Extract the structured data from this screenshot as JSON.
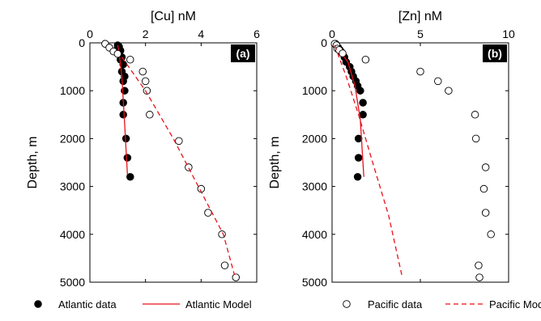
{
  "chart_data": [
    {
      "type": "scatter",
      "panel_label": "(a)",
      "xlabel": "[Cu] nM",
      "ylabel": "Depth, m",
      "xlim": [
        0,
        6
      ],
      "ylim": [
        0,
        5000
      ],
      "y_reversed": true,
      "x_axis_position": "top",
      "xticks": [
        0,
        2,
        4,
        6
      ],
      "yticks": [
        0,
        1000,
        2000,
        3000,
        4000,
        5000
      ],
      "series": [
        {
          "name": "Atlantic data",
          "style": "filled-circle",
          "points": [
            [
              1.0,
              50
            ],
            [
              1.05,
              80
            ],
            [
              1.0,
              120
            ],
            [
              1.1,
              160
            ],
            [
              1.05,
              200
            ],
            [
              1.15,
              300
            ],
            [
              1.1,
              350
            ],
            [
              1.2,
              450
            ],
            [
              1.15,
              600
            ],
            [
              1.25,
              700
            ],
            [
              1.2,
              800
            ],
            [
              1.25,
              1000
            ],
            [
              1.2,
              1250
            ],
            [
              1.2,
              1500
            ],
            [
              1.3,
              2000
            ],
            [
              1.35,
              2400
            ],
            [
              1.45,
              2800
            ]
          ]
        },
        {
          "name": "Atlantic Model",
          "style": "solid-line",
          "points": [
            [
              1.0,
              50
            ],
            [
              1.05,
              200
            ],
            [
              1.15,
              700
            ],
            [
              1.25,
              1700
            ],
            [
              1.35,
              2750
            ]
          ]
        },
        {
          "name": "Pacific data",
          "style": "open-circle",
          "points": [
            [
              0.55,
              20
            ],
            [
              0.7,
              100
            ],
            [
              0.85,
              180
            ],
            [
              1.0,
              230
            ],
            [
              1.45,
              350
            ],
            [
              1.9,
              600
            ],
            [
              2.0,
              800
            ],
            [
              2.05,
              1000
            ],
            [
              2.15,
              1500
            ],
            [
              3.2,
              2050
            ],
            [
              3.55,
              2600
            ],
            [
              4.0,
              3050
            ],
            [
              4.25,
              3550
            ],
            [
              4.75,
              4000
            ],
            [
              4.85,
              4650
            ],
            [
              5.25,
              4900
            ]
          ]
        },
        {
          "name": "Pacific Model",
          "style": "dashed-line",
          "points": [
            [
              1.15,
              300
            ],
            [
              2.0,
              1000
            ],
            [
              3.0,
              2000
            ],
            [
              3.9,
              3000
            ],
            [
              4.8,
              4000
            ],
            [
              5.2,
              4850
            ]
          ]
        }
      ]
    },
    {
      "type": "scatter",
      "panel_label": "(b)",
      "xlabel": "[Zn] nM",
      "ylabel": "Depth, m",
      "xlim": [
        0,
        10
      ],
      "ylim": [
        0,
        5000
      ],
      "y_reversed": true,
      "x_axis_position": "top",
      "xticks": [
        0,
        5,
        10
      ],
      "yticks": [
        0,
        1000,
        2000,
        3000,
        4000,
        5000
      ],
      "series": [
        {
          "name": "Atlantic data",
          "style": "filled-circle",
          "points": [
            [
              0.2,
              20
            ],
            [
              0.25,
              50
            ],
            [
              0.35,
              100
            ],
            [
              0.45,
              150
            ],
            [
              0.55,
              200
            ],
            [
              0.7,
              300
            ],
            [
              0.8,
              400
            ],
            [
              1.0,
              500
            ],
            [
              1.1,
              600
            ],
            [
              1.2,
              700
            ],
            [
              1.35,
              800
            ],
            [
              1.45,
              900
            ],
            [
              1.6,
              1000
            ],
            [
              1.75,
              1250
            ],
            [
              1.75,
              1500
            ],
            [
              1.5,
              2000
            ],
            [
              1.5,
              2400
            ],
            [
              1.45,
              2800
            ]
          ]
        },
        {
          "name": "Atlantic Model",
          "style": "solid-line",
          "points": [
            [
              0.2,
              50
            ],
            [
              0.9,
              400
            ],
            [
              1.3,
              900
            ],
            [
              1.6,
              1600
            ],
            [
              1.8,
              2800
            ]
          ]
        },
        {
          "name": "Pacific data",
          "style": "open-circle",
          "points": [
            [
              0.15,
              20
            ],
            [
              0.25,
              50
            ],
            [
              0.3,
              120
            ],
            [
              0.4,
              150
            ],
            [
              0.6,
              220
            ],
            [
              1.9,
              350
            ],
            [
              5.0,
              600
            ],
            [
              6.0,
              800
            ],
            [
              6.6,
              1000
            ],
            [
              8.1,
              1500
            ],
            [
              8.15,
              2000
            ],
            [
              8.7,
              2600
            ],
            [
              8.6,
              3050
            ],
            [
              8.7,
              3550
            ],
            [
              9.0,
              4000
            ],
            [
              8.3,
              4650
            ],
            [
              8.35,
              4900
            ]
          ]
        },
        {
          "name": "Pacific Model",
          "style": "dashed-line",
          "points": [
            [
              0.15,
              50
            ],
            [
              0.8,
              700
            ],
            [
              1.5,
              1500
            ],
            [
              2.3,
              2500
            ],
            [
              3.2,
              3600
            ],
            [
              3.95,
              4850
            ]
          ]
        }
      ]
    }
  ],
  "legend": [
    {
      "label": "Atlantic data",
      "style": "filled-circle"
    },
    {
      "label": "Atlantic Model",
      "style": "solid-line"
    },
    {
      "label": "Pacific data",
      "style": "open-circle"
    },
    {
      "label": "Pacific Model",
      "style": "dashed-line"
    }
  ],
  "colors": {
    "model_line": "#e8101a",
    "marker": "#000000",
    "axes": "#000000"
  }
}
